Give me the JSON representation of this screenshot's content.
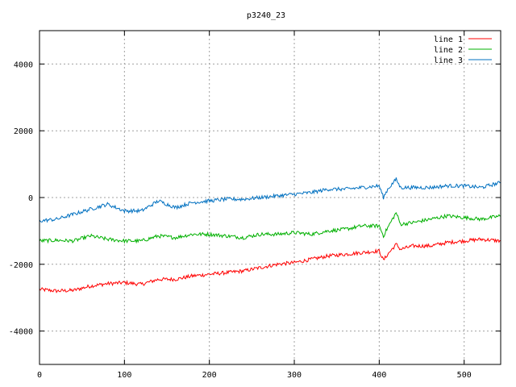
{
  "chart_data": {
    "type": "line",
    "title": "p3240_23",
    "xlabel": "",
    "ylabel": "",
    "xlim": [
      0,
      543
    ],
    "ylim": [
      -5000,
      5000
    ],
    "xticks": [
      0,
      100,
      200,
      300,
      400,
      500
    ],
    "yticks": [
      -4000,
      -2000,
      0,
      2000,
      4000
    ],
    "grid": true,
    "legend_position": "top-right",
    "series": [
      {
        "name": "line 1",
        "color": "#ff0000",
        "x": [
          0,
          20,
          40,
          60,
          80,
          100,
          120,
          140,
          160,
          180,
          200,
          220,
          240,
          260,
          280,
          300,
          320,
          340,
          360,
          380,
          400,
          405,
          410,
          420,
          425,
          440,
          460,
          480,
          500,
          520,
          543
        ],
        "values": [
          -2750,
          -2800,
          -2780,
          -2650,
          -2580,
          -2550,
          -2600,
          -2450,
          -2450,
          -2350,
          -2300,
          -2250,
          -2200,
          -2100,
          -2000,
          -1950,
          -1850,
          -1750,
          -1700,
          -1650,
          -1600,
          -1880,
          -1700,
          -1400,
          -1550,
          -1450,
          -1450,
          -1350,
          -1300,
          -1250,
          -1300
        ]
      },
      {
        "name": "line 2",
        "color": "#00b000",
        "x": [
          0,
          20,
          40,
          60,
          80,
          100,
          120,
          140,
          160,
          180,
          200,
          220,
          240,
          260,
          280,
          300,
          320,
          340,
          360,
          380,
          400,
          405,
          410,
          420,
          425,
          440,
          460,
          480,
          500,
          520,
          543
        ],
        "values": [
          -1300,
          -1280,
          -1300,
          -1150,
          -1250,
          -1300,
          -1300,
          -1150,
          -1200,
          -1100,
          -1100,
          -1150,
          -1200,
          -1100,
          -1100,
          -1050,
          -1100,
          -1000,
          -950,
          -850,
          -850,
          -1150,
          -900,
          -450,
          -800,
          -750,
          -650,
          -550,
          -600,
          -650,
          -550
        ]
      },
      {
        "name": "line 3",
        "color": "#0070c0",
        "x": [
          0,
          20,
          40,
          60,
          80,
          100,
          120,
          140,
          160,
          180,
          200,
          220,
          240,
          260,
          280,
          300,
          320,
          340,
          360,
          380,
          400,
          405,
          410,
          420,
          425,
          440,
          460,
          480,
          500,
          520,
          543
        ],
        "values": [
          -700,
          -650,
          -500,
          -350,
          -200,
          -400,
          -400,
          -100,
          -300,
          -150,
          -100,
          -50,
          -50,
          0,
          50,
          100,
          150,
          250,
          250,
          300,
          350,
          0,
          250,
          550,
          300,
          300,
          300,
          350,
          350,
          300,
          450
        ]
      }
    ]
  }
}
